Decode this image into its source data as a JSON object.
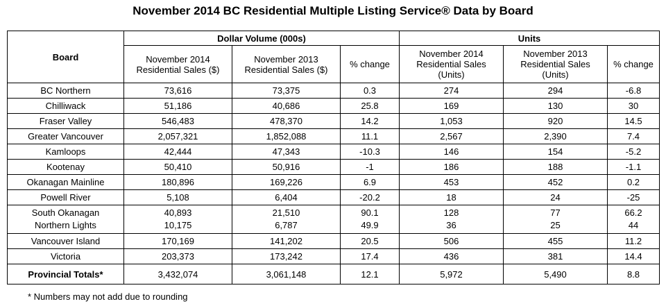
{
  "title": "November 2014 BC Residential Multiple Listing Service® Data by Board",
  "headers": {
    "board": "Board",
    "dollar_group": "Dollar Volume (000s)",
    "units_group": "Units",
    "dv_nov2014": [
      "November 2014",
      "Residential Sales ($)"
    ],
    "dv_nov2013": [
      "November 2013",
      "Residential Sales ($)"
    ],
    "dv_change": "% change",
    "u_nov2014": [
      "November 2014",
      "Residential Sales",
      "(Units)"
    ],
    "u_nov2013": [
      "November 2013",
      "Residential Sales",
      "(Units)"
    ],
    "u_change": "% change"
  },
  "rows": [
    {
      "board": "BC Northern",
      "dv2014": "73,616",
      "dv2013": "73,375",
      "dvchg": "0.3",
      "u2014": "274",
      "u2013": "294",
      "uchg": "-6.8"
    },
    {
      "board": "Chilliwack",
      "dv2014": "51,186",
      "dv2013": "40,686",
      "dvchg": "25.8",
      "u2014": "169",
      "u2013": "130",
      "uchg": "30"
    },
    {
      "board": "Fraser Valley",
      "dv2014": "546,483",
      "dv2013": "478,370",
      "dvchg": "14.2",
      "u2014": "1,053",
      "u2013": "920",
      "uchg": "14.5"
    },
    {
      "board": "Greater Vancouver",
      "dv2014": "2,057,321",
      "dv2013": "1,852,088",
      "dvchg": "11.1",
      "u2014": "2,567",
      "u2013": "2,390",
      "uchg": "7.4"
    },
    {
      "board": "Kamloops",
      "dv2014": "42,444",
      "dv2013": "47,343",
      "dvchg": "-10.3",
      "u2014": "146",
      "u2013": "154",
      "uchg": "-5.2"
    },
    {
      "board": "Kootenay",
      "dv2014": "50,410",
      "dv2013": "50,916",
      "dvchg": "-1",
      "u2014": "186",
      "u2013": "188",
      "uchg": "-1.1"
    },
    {
      "board": "Okanagan Mainline",
      "dv2014": "180,896",
      "dv2013": "169,226",
      "dvchg": "6.9",
      "u2014": "453",
      "u2013": "452",
      "uchg": "0.2"
    },
    {
      "board": "Powell River",
      "dv2014": "5,108",
      "dv2013": "6,404",
      "dvchg": "-20.2",
      "u2014": "18",
      "u2013": "24",
      "uchg": "-25"
    }
  ],
  "merged_rows": [
    {
      "board": "South Okanagan",
      "dv2014": "40,893",
      "dv2013": "21,510",
      "dvchg": "90.1",
      "u2014": "128",
      "u2013": "77",
      "uchg": "66.2"
    },
    {
      "board": "Northern Lights",
      "dv2014": "10,175",
      "dv2013": "6,787",
      "dvchg": "49.9",
      "u2014": "36",
      "u2013": "25",
      "uchg": "44"
    }
  ],
  "rows_after": [
    {
      "board": "Vancouver Island",
      "dv2014": "170,169",
      "dv2013": "141,202",
      "dvchg": "20.5",
      "u2014": "506",
      "u2013": "455",
      "uchg": "11.2"
    },
    {
      "board": "Victoria",
      "dv2014": "203,373",
      "dv2013": "173,242",
      "dvchg": "17.4",
      "u2014": "436",
      "u2013": "381",
      "uchg": "14.4"
    }
  ],
  "totals": {
    "board": "Provincial Totals*",
    "dv2014": "3,432,074",
    "dv2013": "3,061,148",
    "dvchg": "12.1",
    "u2014": "5,972",
    "u2013": "5,490",
    "uchg": "8.8"
  },
  "footnote": "* Numbers may not add due to rounding"
}
